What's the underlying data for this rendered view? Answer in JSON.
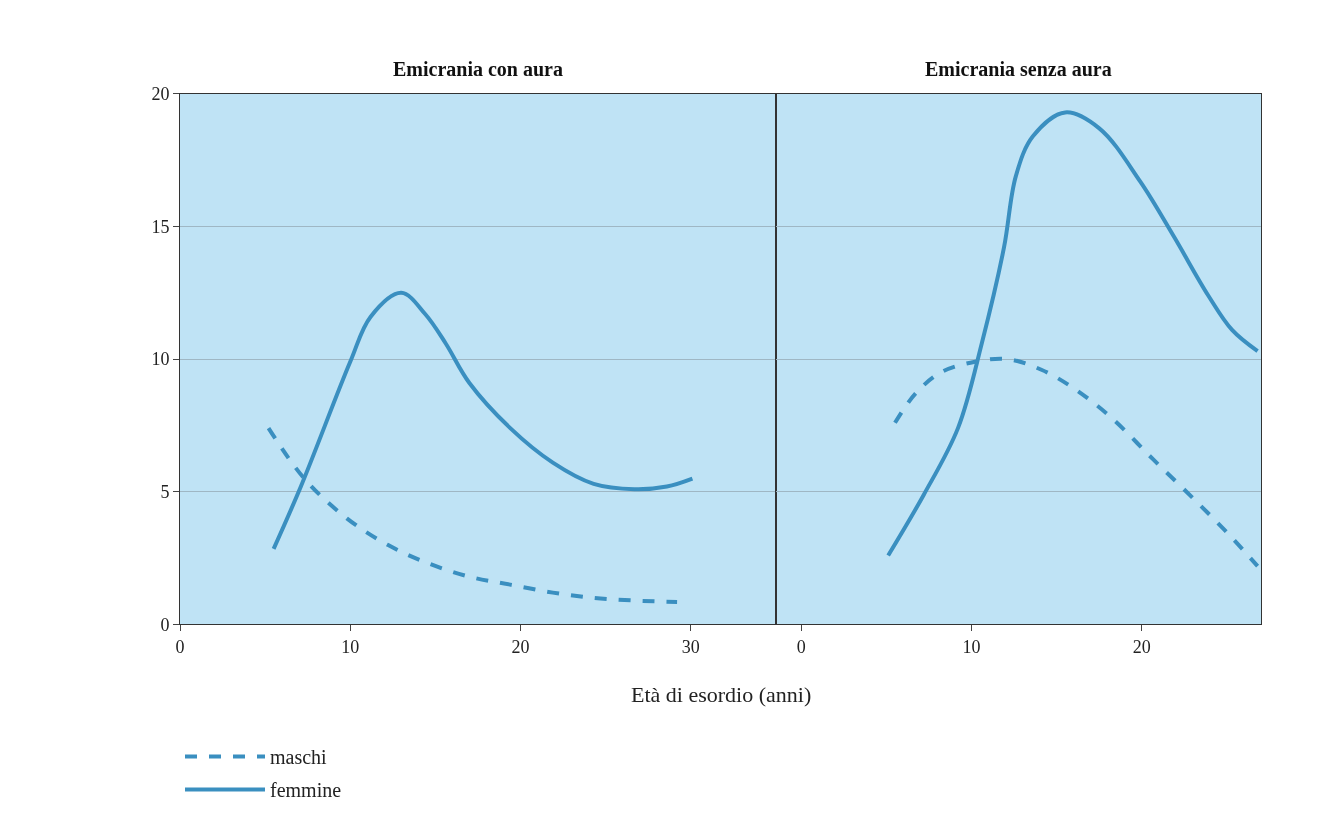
{
  "chart_data": [
    {
      "type": "line",
      "title": "Emicrania con aura",
      "xlabel": "Età di esordio (anni)",
      "xlim": [
        0,
        35
      ],
      "xticks": [
        0,
        10,
        20,
        30
      ],
      "ylim": [
        0,
        20
      ],
      "yticks": [
        0,
        5,
        10,
        15,
        20
      ],
      "grid": "y",
      "legend": "bottom left",
      "series": [
        {
          "name": "maschi",
          "color": "#3a8fc0",
          "line_style": "dashed",
          "x": [
            5.2,
            7.3,
            9.8,
            12.2,
            14.6,
            17.0,
            19.4,
            21.9,
            24.3,
            26.7,
            29.2
          ],
          "values": [
            7.4,
            5.5,
            4.0,
            3.0,
            2.3,
            1.8,
            1.5,
            1.2,
            1.0,
            0.9,
            0.85
          ]
        },
        {
          "name": "femmine",
          "color": "#3a8fc0",
          "line_style": "solid",
          "x": [
            5.5,
            7.1,
            10.0,
            11.2,
            13.0,
            14.4,
            15.6,
            17.0,
            19.4,
            21.9,
            24.3,
            26.7,
            28.6,
            30.1
          ],
          "values": [
            2.85,
            5.2,
            9.9,
            11.6,
            12.5,
            11.7,
            10.6,
            9.1,
            7.4,
            6.1,
            5.3,
            5.1,
            5.2,
            5.5
          ]
        }
      ]
    },
    {
      "type": "line",
      "title": "Emicrania senza aura",
      "xlim": [
        -1.5,
        27
      ],
      "xticks": [
        0,
        10,
        20
      ],
      "ylim": [
        0,
        20
      ],
      "grid": "y",
      "tick_labels": "x",
      "series": [
        {
          "name": "maschi",
          "color": "#3a8fc0",
          "line_style": "dashed",
          "x": [
            5.5,
            6.7,
            8.2,
            10.2,
            12.1,
            14.1,
            16.0,
            18.2,
            20.7,
            23.1,
            25.1,
            26.8
          ],
          "values": [
            7.6,
            8.7,
            9.5,
            9.9,
            10.0,
            9.6,
            8.9,
            7.8,
            6.2,
            4.7,
            3.4,
            2.2
          ]
        },
        {
          "name": "femmine",
          "color": "#3a8fc0",
          "line_style": "solid",
          "x": [
            5.1,
            7.2,
            9.2,
            10.6,
            11.9,
            12.6,
            13.6,
            15.5,
            17.5,
            19.9,
            21.9,
            23.9,
            25.3,
            26.8
          ],
          "values": [
            2.6,
            4.9,
            7.4,
            10.6,
            14.2,
            16.9,
            18.4,
            19.3,
            18.7,
            16.7,
            14.6,
            12.4,
            11.1,
            10.3
          ]
        }
      ]
    }
  ]
}
